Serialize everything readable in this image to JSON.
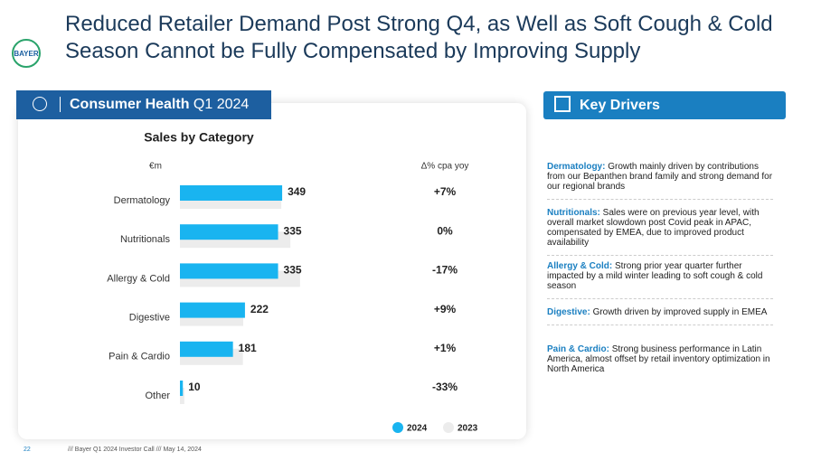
{
  "title": "Reduced Retailer Demand Post Strong Q4, as Well as Soft Cough & Cold Season Cannot be Fully Compensated by Improving Supply",
  "logo": "BAYER",
  "panel_title": {
    "bold": "Consumer Health",
    "rest": "Q1 2024"
  },
  "key_drivers_title": "Key Drivers",
  "chart_data": {
    "type": "bar",
    "title": "Sales by Category",
    "unit_label": "€m",
    "change_label": "Δ% cpa yoy",
    "categories": [
      "Dermatology",
      "Nutritionals",
      "Allergy & Cold",
      "Digestive",
      "Pain & Cardio",
      "Other"
    ],
    "series": [
      {
        "name": "2024",
        "color": "#19b4f0",
        "values": [
          349,
          335,
          335,
          222,
          181,
          10
        ]
      },
      {
        "name": "2023",
        "color": "#ececec",
        "values": [
          346,
          377,
          410,
          216,
          215,
          15
        ]
      }
    ],
    "changes": [
      "+7%",
      "0%",
      "-17%",
      "+9%",
      "+1%",
      "-33%"
    ]
  },
  "drivers": [
    {
      "label": "Dermatology:",
      "text": "Growth mainly driven by contributions from our Bepanthen brand family and strong demand for our regional brands"
    },
    {
      "label": "Nutritionals:",
      "text": "Sales were on previous year level, with overall market slowdown post Covid peak in APAC, compensated by EMEA, due to improved product availability"
    },
    {
      "label": "Allergy & Cold:",
      "text": "Strong prior year quarter further impacted by a mild winter leading to soft cough & cold season"
    },
    {
      "label": "Digestive:",
      "text": "Growth driven by improved supply in EMEA"
    },
    {
      "label": "Pain & Cardio:",
      "text": "Strong business performance in Latin America, almost offset by retail inventory optimization in North America"
    }
  ],
  "footer": {
    "page": "22",
    "text": "/// Bayer Q1 2024 Investor Call /// May 14, 2024"
  }
}
